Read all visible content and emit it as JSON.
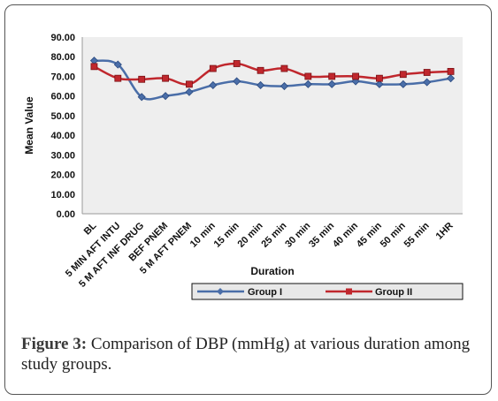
{
  "caption": {
    "figure_label": "Figure 3:",
    "text": " Comparison of DBP (mmHg) at various duration among study groups."
  },
  "colors": {
    "plot_bg": "#eeeeee",
    "group1": "#4a6ea8",
    "group2": "#c0272d",
    "legend_bg": "#e8e8e8"
  },
  "chart_data": {
    "type": "line",
    "xlabel": "Duration",
    "ylabel": "Mean Value",
    "ylim": [
      0,
      90
    ],
    "yticks": [
      "0.00",
      "10.00",
      "20.00",
      "30.00",
      "40.00",
      "50.00",
      "60.00",
      "70.00",
      "80.00",
      "90.00"
    ],
    "categories": [
      "BL",
      "5 MIN AFT INTU",
      "5 M AFT INF DRUG",
      "BEF PNEM",
      "5 M AFT PNEM",
      "10 min",
      "15 min",
      "20 min",
      "25 min",
      "30 min",
      "35 min",
      "40 min",
      "45 min",
      "50 min",
      "55 min",
      "1HR"
    ],
    "series": [
      {
        "name": "Group I",
        "marker": "diamond",
        "values": [
          78,
          76,
          59.5,
          60,
          62,
          65.5,
          67.5,
          65.5,
          65,
          66,
          66,
          67.5,
          66,
          66,
          67,
          69
        ]
      },
      {
        "name": "Group II",
        "marker": "square",
        "values": [
          75,
          69,
          68.5,
          69,
          66,
          74,
          76.5,
          73,
          74,
          70,
          70,
          70,
          69,
          71,
          72,
          72.5
        ]
      }
    ],
    "grid": false,
    "legend_position": "bottom"
  }
}
